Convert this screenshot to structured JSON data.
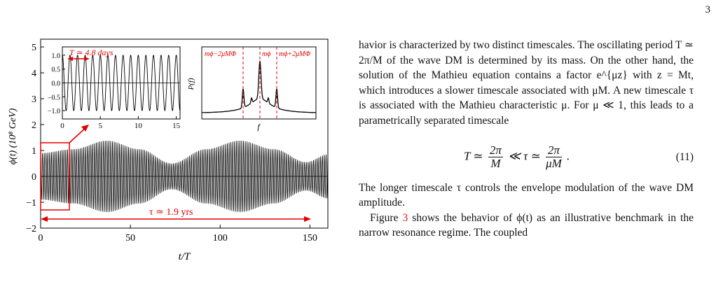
{
  "page_number": "3",
  "figure": {
    "main_chart": {
      "ylabel": "ϕ(t) (10⁸ GeV)",
      "xlabel": "t/T",
      "xticks": [
        "0",
        "50",
        "100",
        "150"
      ],
      "yticks": [
        "−2",
        "−1",
        "0",
        "1",
        "2",
        "3",
        "4",
        "5"
      ],
      "annotation_tau": "τ ≃ 1.9 yrs"
    },
    "inset_left": {
      "annotation_T": "T ≃ 4.8 days",
      "xticks": [
        "0",
        "5",
        "10",
        "15"
      ],
      "yticks": [
        "1.0",
        "0.5",
        "0.0",
        "−0.5",
        "−1.0"
      ]
    },
    "inset_right": {
      "ylabel": "P(f)",
      "xlabel": "f",
      "peak_labels": [
        "mϕ−2μMΦ",
        "mϕ",
        "mϕ+2μMΦ"
      ]
    },
    "colors": {
      "annotation": "#e00000",
      "line": "#000000"
    }
  },
  "chart_data": [
    {
      "type": "line",
      "description_role": "main",
      "xlabel": "t/T",
      "ylabel": "ϕ(t) (10⁸ GeV)",
      "xlim": [
        0,
        160
      ],
      "ylim": [
        -2,
        5.3
      ],
      "series": [
        {
          "envelope_points": [
            [
              0,
              0.9
            ],
            [
              18,
              1.05
            ],
            [
              37,
              1.38
            ],
            [
              55,
              1.05
            ],
            [
              73,
              0.5
            ],
            [
              92,
              1.05
            ],
            [
              111,
              1.38
            ],
            [
              130,
              1.05
            ],
            [
              148,
              0.55
            ],
            [
              160,
              0.85
            ]
          ]
        }
      ],
      "annotations": [
        "τ ≃ 1.9 yrs"
      ]
    },
    {
      "type": "line",
      "description_role": "inset-time",
      "xlim": [
        0,
        15.5
      ],
      "ylim": [
        -1.3,
        1.3
      ],
      "series": [
        {
          "amplitude": 1.0,
          "period": 1.0
        }
      ],
      "annotations": [
        "T ≃ 4.8 days"
      ]
    },
    {
      "type": "line",
      "description_role": "inset-spectrum",
      "xlabel": "f",
      "ylabel": "P(f)",
      "peaks": [
        "mϕ−2μMΦ",
        "mϕ",
        "mϕ+2μMΦ"
      ]
    }
  ],
  "text": {
    "para1": "havior is characterized by two distinct timescales. The oscillating period T ≃ 2π/M of the wave DM is determined by its mass. On the other hand, the solution of the Mathieu equation contains a factor e^{μz} with z = Mt, which introduces a slower timescale associated with μM. A new timescale τ is associated with the Mathieu characteristic μ. For μ ≪ 1, this leads to a parametrically separated timescale",
    "eq_lhs": "T ≃",
    "eq_frac1_num": "2π",
    "eq_frac1_den": "M",
    "eq_mid": "≪ τ ≃",
    "eq_frac2_num": "2π",
    "eq_frac2_den": "μM",
    "eq_end": ".",
    "eq_number": "(11)",
    "para2": "The longer timescale τ controls the envelope modulation of the wave DM amplitude.",
    "para3_pre": "Figure ",
    "para3_ref": "3",
    "para3_post": " shows the behavior of ϕ(t) as an illustrative benchmark in the narrow resonance regime. The coupled"
  }
}
